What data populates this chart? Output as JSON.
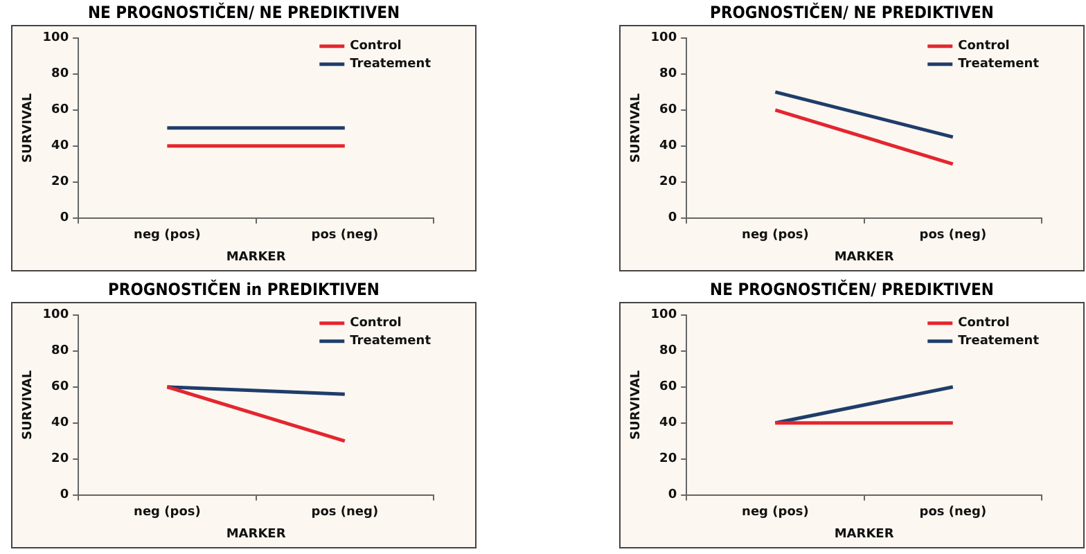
{
  "chart_data": [
    {
      "type": "line",
      "title": "NE PROGNOSTIČEN/ NE PREDIKTIVEN",
      "xlabel": "MARKER",
      "ylabel": "SURVIVAL",
      "categories": [
        "neg (pos)",
        "pos (neg)"
      ],
      "ylim": [
        0,
        100
      ],
      "yticks": [
        0,
        20,
        40,
        60,
        80,
        100
      ],
      "grid": false,
      "legend": "top right",
      "marker": "none",
      "series": [
        {
          "name": "Control",
          "color": "#e3262f",
          "values": [
            40,
            40
          ]
        },
        {
          "name": "Treatement",
          "color": "#1f3d6b",
          "values": [
            50,
            50
          ]
        }
      ]
    },
    {
      "type": "line",
      "title": "PROGNOSTIČEN/ NE PREDIKTIVEN",
      "xlabel": "MARKER",
      "ylabel": "SURVIVAL",
      "categories": [
        "neg (pos)",
        "pos (neg)"
      ],
      "ylim": [
        0,
        100
      ],
      "yticks": [
        0,
        20,
        40,
        60,
        80,
        100
      ],
      "grid": false,
      "legend": "top right",
      "marker": "none",
      "series": [
        {
          "name": "Control",
          "color": "#e3262f",
          "values": [
            60,
            30
          ]
        },
        {
          "name": "Treatement",
          "color": "#1f3d6b",
          "values": [
            70,
            45
          ]
        }
      ]
    },
    {
      "type": "line",
      "title": "PROGNOSTIČEN in PREDIKTIVEN",
      "xlabel": "MARKER",
      "ylabel": "SURVIVAL",
      "categories": [
        "neg (pos)",
        "pos (neg)"
      ],
      "ylim": [
        0,
        100
      ],
      "yticks": [
        0,
        20,
        40,
        60,
        80,
        100
      ],
      "grid": false,
      "legend": "top right",
      "marker": "none",
      "series": [
        {
          "name": "Control",
          "color": "#e3262f",
          "values": [
            60,
            30
          ]
        },
        {
          "name": "Treatement",
          "color": "#1f3d6b",
          "values": [
            60,
            56
          ]
        }
      ]
    },
    {
      "type": "line",
      "title": "NE PROGNOSTIČEN/ PREDIKTIVEN",
      "xlabel": "MARKER",
      "ylabel": "SURVIVAL",
      "categories": [
        "neg (pos)",
        "pos (neg)"
      ],
      "ylim": [
        0,
        100
      ],
      "yticks": [
        0,
        20,
        40,
        60,
        80,
        100
      ],
      "grid": false,
      "legend": "top right",
      "marker": "none",
      "series": [
        {
          "name": "Control",
          "color": "#e3262f",
          "values": [
            40,
            40
          ]
        },
        {
          "name": "Treatement",
          "color": "#1f3d6b",
          "values": [
            40,
            60
          ]
        }
      ]
    }
  ]
}
